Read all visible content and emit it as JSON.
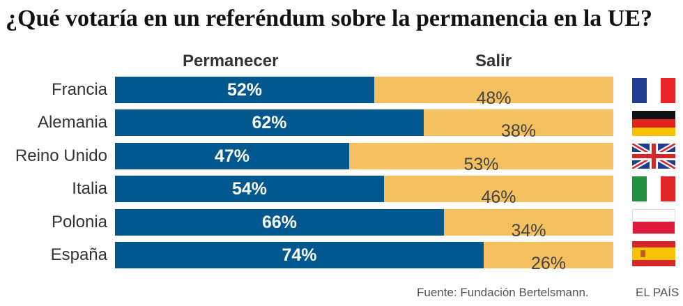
{
  "title": "¿Qué votaría en un referéndum sobre la permanencia en la UE?",
  "chart_data": {
    "type": "bar",
    "orientation": "horizontal",
    "stacked": true,
    "title": "¿Qué votaría en un referéndum sobre la permanencia en la UE?",
    "categories": [
      "Francia",
      "Alemania",
      "Reino Unido",
      "Italia",
      "Polonia",
      "España"
    ],
    "series": [
      {
        "name": "Permanecer",
        "values": [
          52,
          62,
          47,
          54,
          66,
          74
        ],
        "color": "#00588f"
      },
      {
        "name": "Salir",
        "values": [
          48,
          38,
          53,
          46,
          34,
          26
        ],
        "color": "#f5c060"
      }
    ],
    "value_labels": {
      "Permanecer": [
        "52%",
        "62%",
        "47%",
        "54%",
        "66%",
        "74%"
      ],
      "Salir": [
        "48%",
        "38%",
        "53%",
        "46%",
        "34%",
        "26%"
      ]
    },
    "xlim": [
      0,
      100
    ],
    "flags": [
      "france-flag",
      "germany-flag",
      "uk-flag",
      "italy-flag",
      "poland-flag",
      "spain-flag"
    ]
  },
  "footer": {
    "source": "Fuente: Fundación Bertelsmann.",
    "brand": "EL PAÍS"
  }
}
